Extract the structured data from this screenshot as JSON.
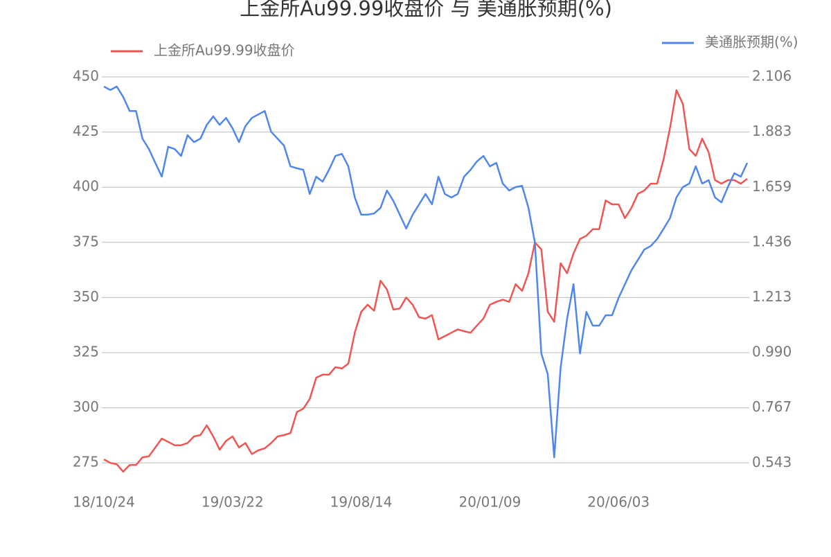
{
  "chart_data": {
    "type": "line",
    "title": "上金所Au99.99收盘价 与 美通胀预期(%)",
    "categories": [
      "18/10/24",
      null,
      null,
      null,
      null,
      null,
      null,
      null,
      null,
      null,
      null,
      null,
      null,
      null,
      null,
      null,
      null,
      null,
      null,
      null,
      "19/03/22",
      null,
      null,
      null,
      null,
      null,
      null,
      null,
      null,
      null,
      null,
      null,
      null,
      null,
      null,
      null,
      null,
      null,
      null,
      null,
      "19/08/14",
      null,
      null,
      null,
      null,
      null,
      null,
      null,
      null,
      null,
      null,
      null,
      null,
      null,
      null,
      null,
      null,
      null,
      null,
      null,
      "20/01/09",
      null,
      null,
      null,
      null,
      null,
      null,
      null,
      null,
      null,
      null,
      null,
      null,
      null,
      null,
      null,
      null,
      null,
      null,
      null,
      "20/06/03",
      null,
      null,
      null,
      null,
      null,
      null,
      null,
      null,
      null,
      null,
      null,
      null,
      null,
      null,
      null,
      null,
      null,
      null,
      null,
      null
    ],
    "series": [
      {
        "name": "上金所Au99.99收盘价",
        "color": "#f05552",
        "values": [
          276.6,
          275,
          274.4,
          271,
          274,
          274,
          277.5,
          278,
          282,
          286,
          284.5,
          283,
          283,
          284,
          287,
          287.6,
          292,
          287,
          281,
          285,
          287,
          282,
          284,
          279,
          280.7,
          281.6,
          284,
          287,
          287.6,
          288.5,
          298,
          299.6,
          304,
          313.6,
          315,
          315,
          318.4,
          317.8,
          320,
          334,
          343.5,
          346.7,
          344,
          357.6,
          353.6,
          344.5,
          345,
          350,
          346.7,
          341,
          340.4,
          342,
          331,
          332.5,
          334,
          335.5,
          334.7,
          334,
          337.3,
          340.4,
          346.7,
          348,
          349,
          348,
          356,
          353,
          361,
          375,
          371.8,
          343.5,
          339,
          365.5,
          361,
          370,
          376.5,
          378,
          381,
          381,
          394,
          392.2,
          392.2,
          386,
          390.6,
          397,
          398.5,
          401.6,
          401.6,
          412.6,
          426.8,
          444,
          437.7,
          417.3,
          414.2,
          422,
          415.8,
          403.2,
          401.6,
          403.2,
          403.2,
          401.6,
          403.8
        ]
      },
      {
        "name": "美通胀预期(%)",
        "color": "#4e86f0",
        "axis": "y2",
        "values": [
          2.067,
          2.053,
          2.067,
          2.025,
          1.968,
          1.968,
          1.856,
          1.814,
          1.758,
          1.702,
          1.823,
          1.814,
          1.786,
          1.87,
          1.842,
          1.856,
          1.912,
          1.946,
          1.912,
          1.94,
          1.898,
          1.842,
          1.907,
          1.94,
          1.954,
          1.968,
          1.884,
          1.856,
          1.828,
          1.744,
          1.736,
          1.73,
          1.632,
          1.702,
          1.682,
          1.73,
          1.786,
          1.794,
          1.744,
          1.618,
          1.548,
          1.548,
          1.553,
          1.576,
          1.646,
          1.604,
          1.548,
          1.492,
          1.548,
          1.59,
          1.632,
          1.59,
          1.702,
          1.632,
          1.618,
          1.632,
          1.702,
          1.73,
          1.764,
          1.786,
          1.744,
          1.758,
          1.674,
          1.646,
          1.66,
          1.665,
          1.576,
          1.435,
          0.986,
          0.902,
          0.566,
          0.93,
          1.127,
          1.267,
          0.986,
          1.155,
          1.099,
          1.099,
          1.141,
          1.141,
          1.211,
          1.267,
          1.323,
          1.365,
          1.407,
          1.421,
          1.449,
          1.491,
          1.534,
          1.618,
          1.66,
          1.674,
          1.744,
          1.674,
          1.688,
          1.618,
          1.598,
          1.66,
          1.716,
          1.702,
          1.758
        ]
      }
    ],
    "ylim": [
      265,
      450
    ],
    "yticks": [
      275,
      300,
      325,
      350,
      375,
      400,
      425,
      450
    ],
    "y2lim": [
      0.454,
      2.106
    ],
    "y2ticks": [
      0.543,
      0.767,
      {
        "value": 0.99,
        "label": "0.990"
      },
      1.213,
      1.436,
      1.659,
      1.883,
      2.106
    ],
    "grid": true
  }
}
